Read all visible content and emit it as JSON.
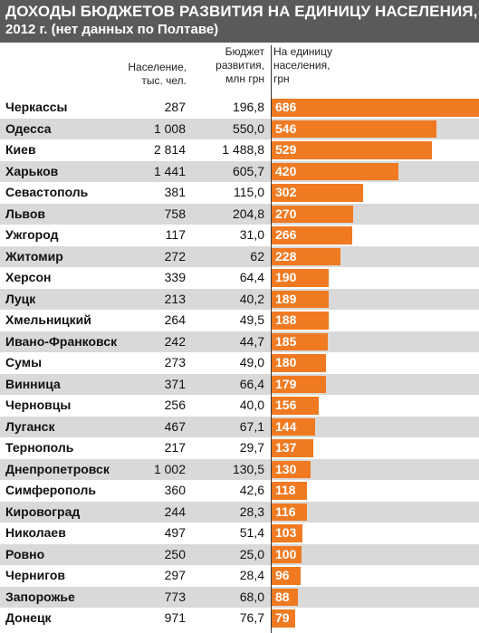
{
  "header": {
    "title_line1": "ДОХОДЫ БЮДЖЕТОВ РАЗВИТИЯ НА ЕДИНИЦУ НАСЕЛЕНИЯ,",
    "title_line2": "2012 г. (нет данных по Полтаве)"
  },
  "columns": {
    "population": [
      "Население,",
      "тыс. чел."
    ],
    "budget": [
      "Бюджет",
      "развития,",
      "млн грн"
    ],
    "per_capita": [
      "На единицу",
      "населения,",
      "грн"
    ]
  },
  "colors": {
    "bar": "#f07a22",
    "header_bg": "#5a5a5a",
    "row_shade": "#d9d9d9"
  },
  "chart_data": {
    "type": "bar",
    "orientation": "horizontal",
    "title": "ДОХОДЫ БЮДЖЕТОВ РАЗВИТИЯ НА ЕДИНИЦУ НАСЕЛЕНИЯ, 2012 г. (нет данных по Полтаве)",
    "xlim": [
      0,
      686
    ],
    "categories": [
      "Черкассы",
      "Одесса",
      "Киев",
      "Харьков",
      "Севастополь",
      "Львов",
      "Ужгород",
      "Житомир",
      "Херсон",
      "Луцк",
      "Хмельницкий",
      "Ивано-Франковск",
      "Сумы",
      "Винница",
      "Черновцы",
      "Луганск",
      "Тернополь",
      "Днепропетровск",
      "Симферополь",
      "Кировоград",
      "Николаев",
      "Ровно",
      "Чернигов",
      "Запорожье",
      "Донецк"
    ],
    "population": [
      "287",
      "1 008",
      "2 814",
      "1 441",
      "381",
      "758",
      "117",
      "272",
      "339",
      "213",
      "264",
      "242",
      "273",
      "371",
      "256",
      "467",
      "217",
      "1 002",
      "360",
      "244",
      "497",
      "250",
      "297",
      "773",
      "971"
    ],
    "budget": [
      "196,8",
      "550,0",
      "1 488,8",
      "605,7",
      "115,0",
      "204,8",
      "31,0",
      "62",
      "64,4",
      "40,2",
      "49,5",
      "44,7",
      "49,0",
      "66,4",
      "40,0",
      "67,1",
      "29,7",
      "130,5",
      "42,6",
      "28,3",
      "51,4",
      "25,0",
      "28,4",
      "68,0",
      "76,7"
    ],
    "values": [
      686,
      546,
      529,
      420,
      302,
      270,
      266,
      228,
      190,
      189,
      188,
      185,
      180,
      179,
      156,
      144,
      137,
      130,
      118,
      116,
      103,
      100,
      96,
      88,
      79
    ]
  }
}
